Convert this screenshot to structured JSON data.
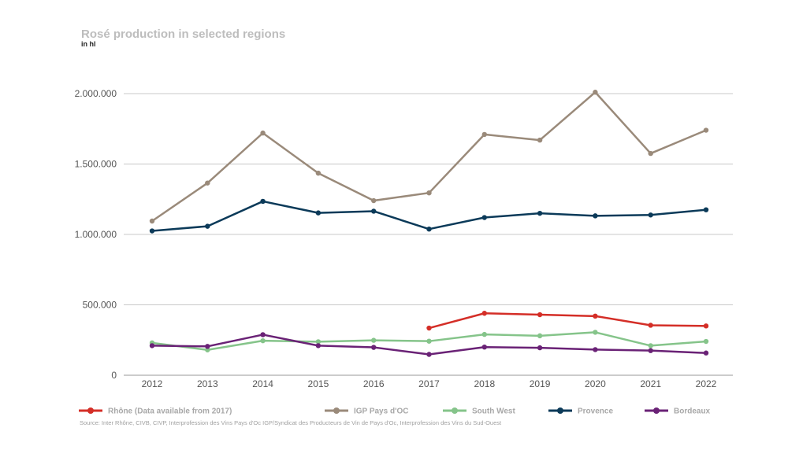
{
  "chart_data": {
    "type": "line",
    "title": "Rosé production in selected regions",
    "subtitle": "in hl",
    "x": [
      "2012",
      "2013",
      "2014",
      "2015",
      "2016",
      "2017",
      "2018",
      "2019",
      "2020",
      "2021",
      "2022"
    ],
    "ylim": [
      0,
      2000000
    ],
    "yticks": [
      {
        "value": 0,
        "label": "0"
      },
      {
        "value": 500000,
        "label": "500.000"
      },
      {
        "value": 1000000,
        "label": "1.000.000"
      },
      {
        "value": 1500000,
        "label": "1.500.000"
      },
      {
        "value": 2000000,
        "label": "2.000.000"
      }
    ],
    "grid": true,
    "legend_position": "bottom",
    "series": [
      {
        "name": "Rhône (Data available from 2017)",
        "color": "#d42e27",
        "values": [
          null,
          null,
          null,
          null,
          null,
          335000,
          440000,
          430000,
          420000,
          355000,
          350000
        ]
      },
      {
        "name": "IGP Pays d'OC",
        "color": "#9a8a7a",
        "values": [
          1095000,
          1365000,
          1720000,
          1435000,
          1240000,
          1295000,
          1710000,
          1670000,
          2010000,
          1575000,
          1740000
        ]
      },
      {
        "name": "South West",
        "color": "#85c48a",
        "values": [
          230000,
          180000,
          245000,
          238000,
          248000,
          242000,
          290000,
          280000,
          305000,
          210000,
          240000
        ]
      },
      {
        "name": "Provence",
        "color": "#0b3a59",
        "values": [
          1025000,
          1058000,
          1235000,
          1153000,
          1165000,
          1038000,
          1120000,
          1150000,
          1132000,
          1138000,
          1175000
        ]
      },
      {
        "name": "Bordeaux",
        "color": "#6a2276",
        "values": [
          210000,
          205000,
          288000,
          210000,
          198000,
          148000,
          200000,
          195000,
          182000,
          175000,
          158000
        ]
      }
    ],
    "source": "Source: Inter Rhône, CIVB, CIVP, Interprofession des Vins Pays d'Oc IGP/Syndicat des Producteurs de Vin de Pays d'Oc, Interprofession des Vins du Sud-Ouest"
  }
}
